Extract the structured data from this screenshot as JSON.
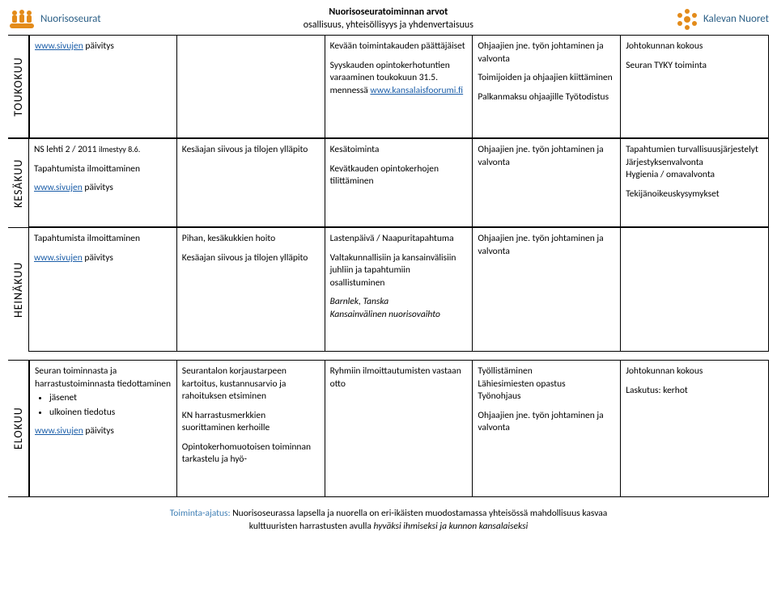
{
  "header": {
    "logo_left_label": "Nuorisoseurat",
    "title_line1": "Nuorisoseuratoiminnan arvot",
    "title_line2": "osallisuus, yhteisöllisyys ja yhdenvertaisuus",
    "logo_right_label": "Kalevan Nuoret",
    "logo_color": "#e38b1a",
    "logo_text_color": "#2b5f86"
  },
  "months": {
    "toukokuu": "TOUKOKUU",
    "kesakuu": "KESÄKUU",
    "heinakuu": "HEINÄKUU",
    "elokuu": "ELOKUU"
  },
  "row_touko": {
    "c1": {
      "p1_link": "www.sivujen",
      "p1_rest": " päivitys"
    },
    "c3": {
      "p1": "Kevään toimintakauden päättäjäiset",
      "p2a": "Syyskauden opintokerhotuntien varaaminen toukokuun 31.5. mennessä ",
      "p2_link": "www.kansalaisfoorumi.fi"
    },
    "c4": {
      "p1": "Ohjaajien jne. työn johtaminen ja valvonta",
      "p2": "Toimijoiden ja ohjaajien kiittäminen",
      "p3": "Palkanmaksu ohjaajille Työtodistus"
    },
    "c5": {
      "p1": "Johtokunnan kokous",
      "p2": "Seuran TYKY toiminta"
    }
  },
  "row_kesa": {
    "c1": {
      "p1a": "NS lehti 2 / 2011 ",
      "p1b": "ilmestyy 8.6.",
      "p2": "Tapahtumista ilmoittaminen",
      "p3_link": "www.sivujen",
      "p3_rest": " päivitys"
    },
    "c2": {
      "p1": "Kesäajan siivous ja tilojen ylläpito"
    },
    "c3": {
      "p1": "Kesätoiminta",
      "p2": "Kevätkauden opintokerhojen tilittäminen"
    },
    "c4": {
      "p1": "Ohjaajien jne. työn johtaminen ja valvonta"
    },
    "c5": {
      "p1": "Tapahtumien turvallisuusjärjestelyt",
      "p2": "Järjestyksenvalvonta",
      "p3": "Hygienia / omavalvonta",
      "p4": "Tekijänoikeuskysymykset"
    }
  },
  "row_heina": {
    "c1": {
      "p1": "Tapahtumista ilmoittaminen",
      "p2_link": "www.sivujen",
      "p2_rest": " päivitys"
    },
    "c2": {
      "p1": "Pihan, kesäkukkien hoito",
      "p2": "Kesäajan siivous ja tilojen ylläpito"
    },
    "c3": {
      "p1": "Lastenpäivä / Naapuritapahtuma",
      "p2": "Valtakunnallisiin ja kansainvälisiin juhliin ja tapahtumiin osallistuminen",
      "p3": "Barnlek, Tanska",
      "p4": "Kansainvälinen nuorisovaihto"
    },
    "c4": {
      "p1": "Ohjaajien jne. työn johtaminen ja valvonta"
    }
  },
  "row_elo": {
    "c1": {
      "p1": "Seuran toiminnasta ja harrastustoiminnasta tiedottaminen",
      "li1": "jäsenet",
      "li2": "ulkoinen tiedotus",
      "p2_link": "www.sivujen",
      "p2_rest": " päivitys"
    },
    "c2": {
      "p1": "Seurantalon korjaustarpeen kartoitus, kustannusarvio ja rahoituksen etsiminen",
      "p2": "KN harrastusmerkkien suorittaminen kerhoille",
      "p3": "Opintokerhomuotoisen toiminnan tarkastelu ja hyö-"
    },
    "c3": {
      "p1": "Ryhmiin ilmoittautumisten vastaan otto"
    },
    "c4": {
      "p1": "Työllistäminen",
      "p2": "Lähiesimiesten opastus",
      "p3": "Työnohjaus",
      "p4": "Ohjaajien jne. työn johtaminen ja valvonta"
    },
    "c5": {
      "p1": "Johtokunnan kokous",
      "p2": "Laskutus: kerhot"
    }
  },
  "footer": {
    "label": "Toiminta-ajatus: ",
    "line1": "Nuorisoseurassa lapsella ja nuorella on eri-ikäisten muodostamassa yhteisössä mahdollisuus kasvaa",
    "line2a": "kulttuuristen harrastusten avulla ",
    "line2b": "hyväksi ihmiseksi ja kunnon kansalaiseksi"
  },
  "heights": {
    "touko": 128,
    "kesa": 110,
    "heina": 154,
    "elo": 170
  }
}
